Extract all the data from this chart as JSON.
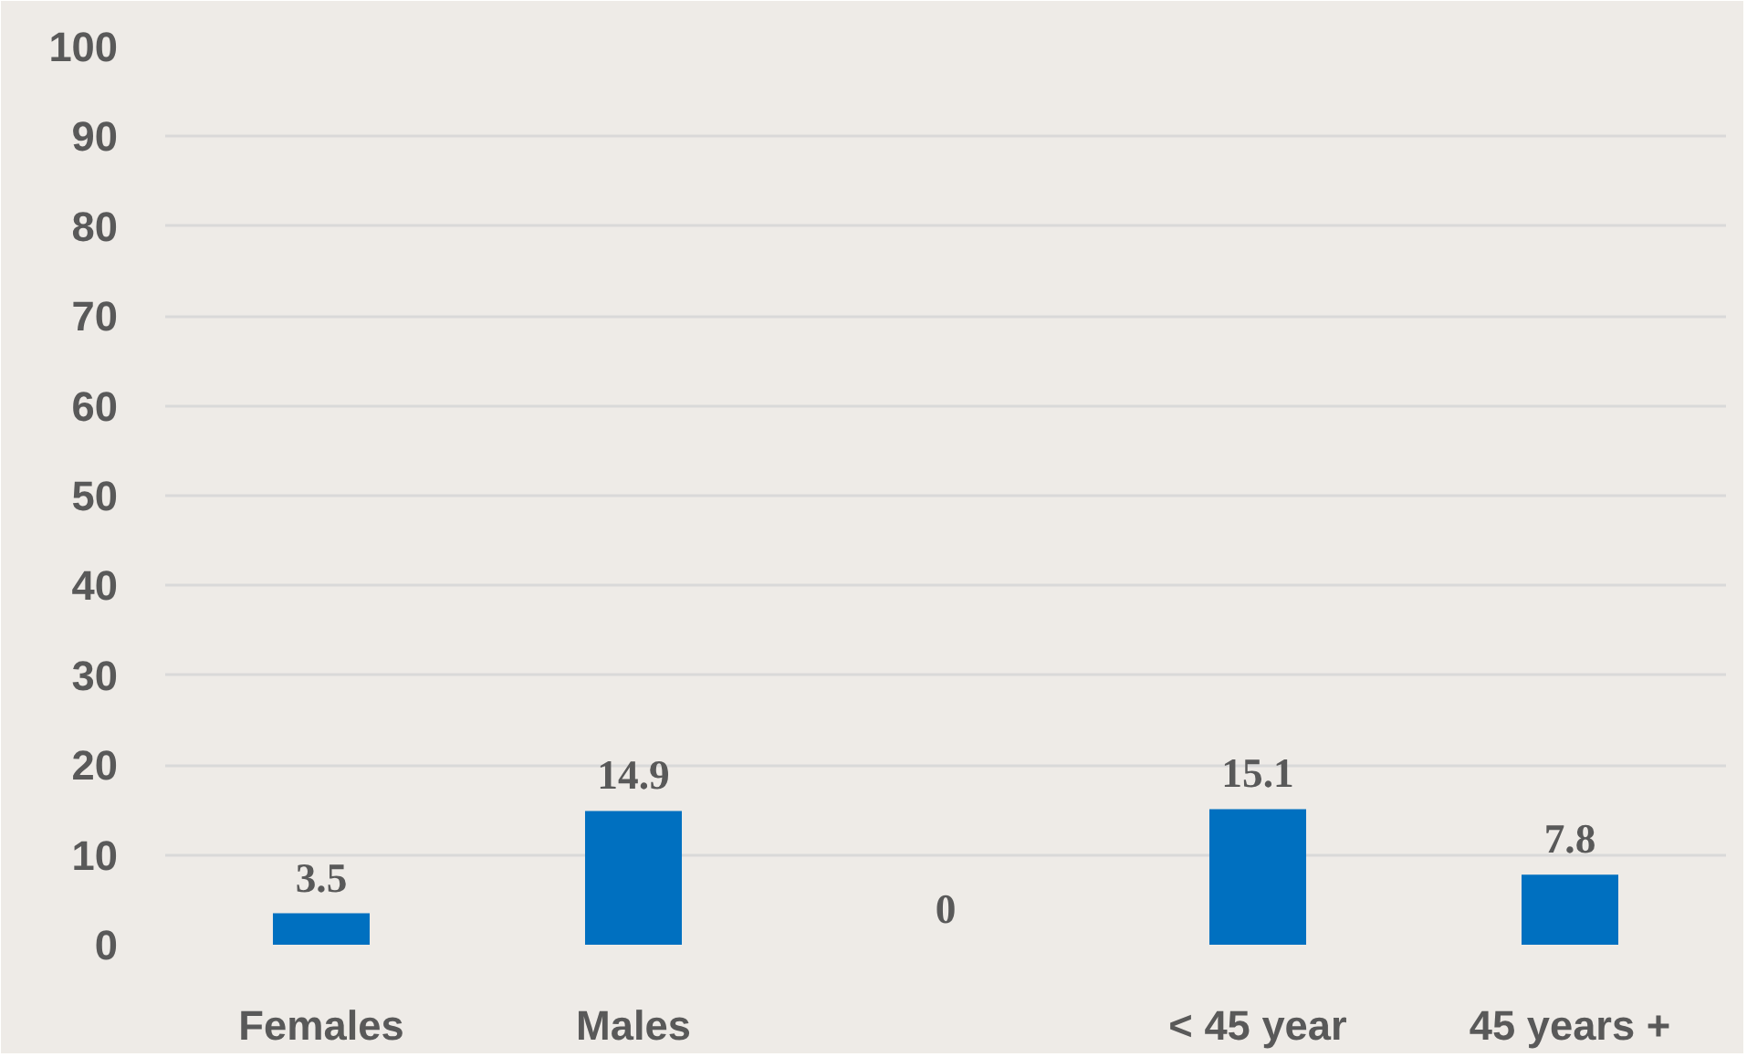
{
  "chart_data": {
    "type": "bar",
    "categories": [
      "Females",
      "Males",
      null,
      "< 45 year",
      "45 years +"
    ],
    "values": [
      3.5,
      14.9,
      0,
      15.1,
      7.8
    ],
    "color": "#0070c0",
    "ylim": [
      0,
      100
    ],
    "yticks": [
      0,
      10,
      20,
      30,
      40,
      50,
      60,
      70,
      80,
      90,
      100
    ],
    "grid": "y",
    "data_labels": true
  }
}
